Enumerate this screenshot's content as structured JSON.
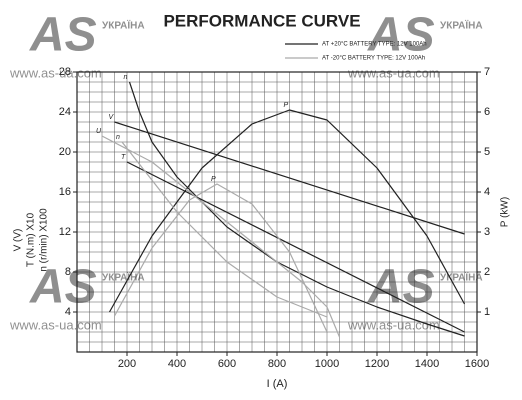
{
  "chart_data": {
    "type": "line",
    "title": "PERFORMANCE CURVE",
    "x_label": "I (A)",
    "y_labels": [
      "V (V)",
      "T (N.m) X10",
      "n (r/min) X100"
    ],
    "y2_label": "P (kW)",
    "xlim": [
      0,
      1600
    ],
    "xticks": [
      200,
      400,
      600,
      800,
      1000,
      1200,
      1400,
      1600
    ],
    "ylim": [
      0,
      28
    ],
    "yticks": [
      4,
      8,
      12,
      16,
      20,
      24,
      28
    ],
    "y2lim": [
      0,
      7
    ],
    "y2ticks": [
      1,
      2,
      3,
      4,
      5,
      6,
      7
    ],
    "grid": true,
    "legend": [
      {
        "label": "AT +20°C  BATTERY TYPE: 12V  100Ah",
        "color": "#222222"
      },
      {
        "label": "AT -20°C  BATTERY TYPE: 12V  100Ah",
        "color": "#aaaaaa"
      }
    ],
    "series": [
      {
        "name": "n",
        "color": "#222222",
        "x": [
          210,
          250,
          300,
          400,
          600,
          800,
          1000,
          1200,
          1400,
          1550
        ],
        "values": [
          27,
          24,
          21,
          17.5,
          12.5,
          9,
          6.5,
          4.5,
          2.8,
          1.6
        ]
      },
      {
        "name": "V",
        "color": "#222222",
        "x": [
          150,
          1550
        ],
        "values": [
          23,
          11.8
        ]
      },
      {
        "name": "T",
        "color": "#222222",
        "x": [
          200,
          1550
        ],
        "values": [
          19,
          2
        ]
      },
      {
        "name": "P",
        "color": "#222222",
        "axis": "y2",
        "x": [
          130,
          300,
          500,
          700,
          850,
          1000,
          1200,
          1400,
          1550
        ],
        "values": [
          1.0,
          2.9,
          4.6,
          5.7,
          6.05,
          5.8,
          4.6,
          2.9,
          1.2
        ]
      },
      {
        "name": "U",
        "color": "#aaaaaa",
        "x": [
          100,
          300,
          500,
          700,
          900,
          1000,
          1050
        ],
        "values": [
          21.6,
          19,
          15,
          11,
          7,
          4.5,
          1.5
        ]
      },
      {
        "name": "n",
        "color": "#aaaaaa",
        "x": [
          180,
          400,
          600,
          800,
          1000
        ],
        "values": [
          21,
          14,
          9,
          5.5,
          3.5
        ]
      },
      {
        "name": "P",
        "color": "#aaaaaa",
        "axis": "y2",
        "x": [
          150,
          300,
          450,
          560,
          700,
          850,
          1000
        ],
        "values": [
          0.9,
          2.6,
          3.8,
          4.2,
          3.7,
          2.5,
          0.5
        ]
      }
    ]
  },
  "watermark": {
    "brand": "AS",
    "country": "УКРАЇНА",
    "url": "www.as-ua.com"
  }
}
